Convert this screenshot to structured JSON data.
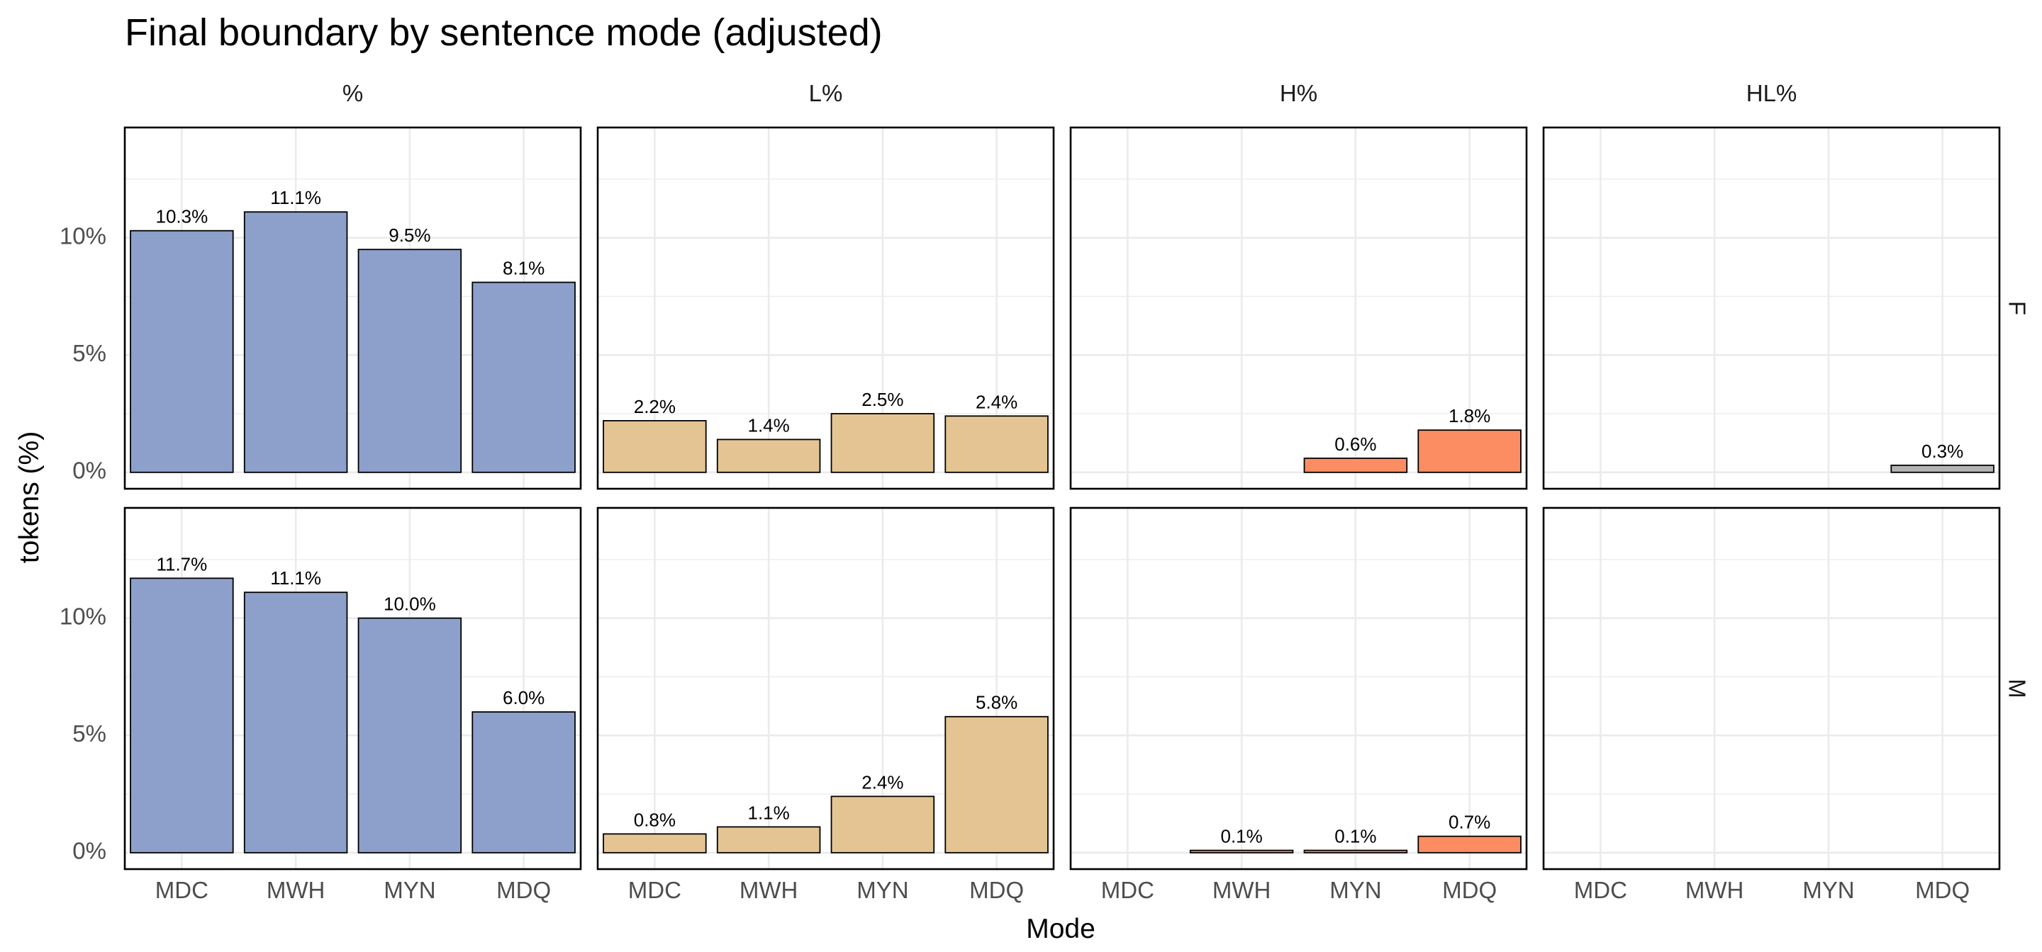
{
  "chart_data": {
    "type": "bar",
    "title": "Final boundary by sentence mode (adjusted)",
    "xlabel": "Mode",
    "ylabel": "tokens (%)",
    "categories": [
      "MDC",
      "MWH",
      "MYN",
      "MDQ"
    ],
    "ylim": [
      -0.7,
      14.7
    ],
    "yticks": [
      0,
      5,
      10
    ],
    "ytick_labels": [
      "0%",
      "5%",
      "10%"
    ],
    "grid": true,
    "facet_columns": [
      {
        "label": "%",
        "color": "#8DA0CB"
      },
      {
        "label": "L%",
        "color": "#E5C494"
      },
      {
        "label": "H%",
        "color": "#FC8D62"
      },
      {
        "label": "HL%",
        "color": "#B3B3B3"
      }
    ],
    "facet_rows": [
      "F",
      "M"
    ],
    "panels": [
      {
        "row": "F",
        "column": "%",
        "values": [
          10.3,
          11.1,
          9.5,
          8.1
        ],
        "labels": [
          "10.3%",
          "11.1%",
          "9.5%",
          "8.1%"
        ]
      },
      {
        "row": "F",
        "column": "L%",
        "values": [
          2.2,
          1.4,
          2.5,
          2.4
        ],
        "labels": [
          "2.2%",
          "1.4%",
          "2.5%",
          "2.4%"
        ]
      },
      {
        "row": "F",
        "column": "H%",
        "values": [
          null,
          null,
          0.6,
          1.8
        ],
        "labels": [
          "",
          "",
          "0.6%",
          "1.8%"
        ]
      },
      {
        "row": "F",
        "column": "HL%",
        "values": [
          null,
          null,
          null,
          0.3
        ],
        "labels": [
          "",
          "",
          "",
          "0.3%"
        ]
      },
      {
        "row": "M",
        "column": "%",
        "values": [
          11.7,
          11.1,
          10.0,
          6.0
        ],
        "labels": [
          "11.7%",
          "11.1%",
          "10.0%",
          "6.0%"
        ]
      },
      {
        "row": "M",
        "column": "L%",
        "values": [
          0.8,
          1.1,
          2.4,
          5.8
        ],
        "labels": [
          "0.8%",
          "1.1%",
          "2.4%",
          "5.8%"
        ]
      },
      {
        "row": "M",
        "column": "H%",
        "values": [
          null,
          0.1,
          0.1,
          0.7
        ],
        "labels": [
          "",
          "0.1%",
          "0.1%",
          "0.7%"
        ]
      },
      {
        "row": "M",
        "column": "HL%",
        "values": [
          null,
          null,
          null,
          null
        ],
        "labels": [
          "",
          "",
          "",
          ""
        ]
      }
    ]
  }
}
